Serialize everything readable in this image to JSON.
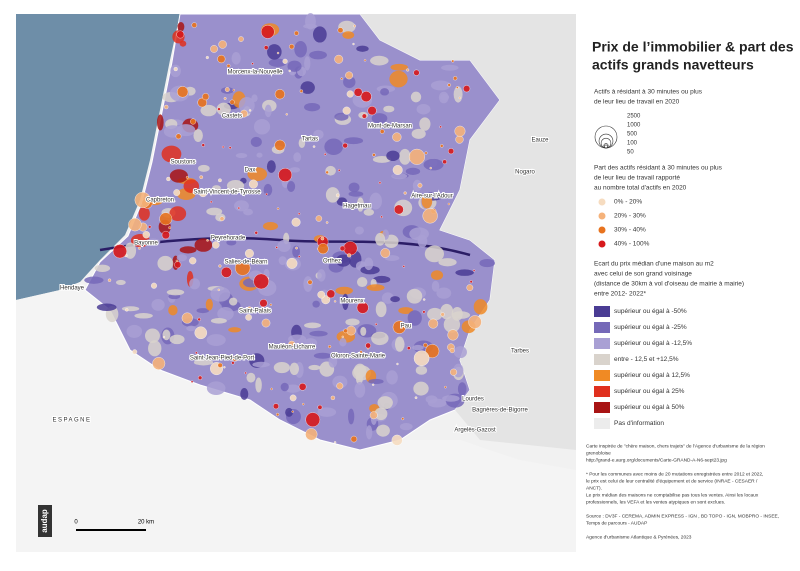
{
  "title": [
    "Prix de l’immobilier & part des",
    "actifs grands navetteurs"
  ],
  "legend_size": {
    "heading": [
      "Actifs à résidant à 30 minutes ou plus",
      "de leur lieu de travail en 2020"
    ],
    "sizes": [
      2500,
      1000,
      500,
      100,
      50
    ]
  },
  "legend_share": {
    "heading": [
      "Part des actifs résidant à 30 minutes ou plus",
      "de leur lieu de travail rapporté",
      "au nombre total d'actifs en 2020"
    ],
    "classes": [
      {
        "label": "0% - 20%",
        "color": "#f6dcc0"
      },
      {
        "label": "20% - 30%",
        "color": "#f5b27a"
      },
      {
        "label": "30% - 40%",
        "color": "#e8731e"
      },
      {
        "label": "40% - 100%",
        "color": "#d7191c"
      }
    ]
  },
  "legend_price": {
    "heading": [
      "Ecart du prix médian d'une maison au m2",
      "avec celui de son grand voisinage",
      "(distance de 30km à vol d'oiseau de mairie à mairie)",
      "entre 2012- 2022*"
    ],
    "classes": [
      {
        "label": "supérieur ou égal à -50%",
        "color": "#4a3c94"
      },
      {
        "label": "supérieur ou égal à -25%",
        "color": "#7569b8"
      },
      {
        "label": "supérieur ou égal à -12,5%",
        "color": "#a9a0d4"
      },
      {
        "label": "entre - 12,5 et +12,5%",
        "color": "#d9d3cc"
      },
      {
        "label": "supérieur ou égal à 12,5%",
        "color": "#f08a24"
      },
      {
        "label": "supérieur ou égal à 25%",
        "color": "#e0301e"
      },
      {
        "label": "supérieur ou égal à 50%",
        "color": "#a81414"
      },
      {
        "label": "Pas d'information",
        "color": "#ececec"
      }
    ]
  },
  "notes": [
    "Carte inspirée de \"chère maison, chers trajets\" de l'Agence d'urbanisme de la région",
    "grenobloise",
    "http://grand-e.aurg.org/documents/Carte-GRAND-A-N6-sept23.jpg",
    "* Pour les communes avec moins de 20 mutations enregistrées entre 2012 et 2022,",
    "le prix est celui de leur centralité d'équipement et de service (INRAE - CESAER /",
    "ANCT).",
    "Le prix médian des maisons ne comptabilise pas tous les ventes. Ainsi les locaux",
    "professionnels, les VEFA et les ventes atypiques en sont exclues.",
    "Source : DV3F - CEREMA, ADMIN EXPRESS - IGN , BD TOPO - IGN, MOBPRO - INSEE,",
    "Temps de parcours - AUDAP",
    "Agence d'urbanisme Atlantique & Pyrénées, 2023"
  ],
  "places": [
    "Morcenx-la-Nouvelle",
    "Castets",
    "Mont-de-Marsan",
    "Tartas",
    "Soustons",
    "Dax",
    "Eauze",
    "Nogaro",
    "Saint-Vincent-de-Tyrosse",
    "Aire-sur-l'Adour",
    "Capbreton",
    "Hagetmau",
    "Bayonne",
    "Peyrehorade",
    "Orthez",
    "Salies-de-Béarn",
    "Hendaye",
    "Mourenx",
    "Saint-Palais",
    "Pau",
    "Tarbes",
    "Mauléon-Licharre",
    "Saint-Jean-Pied-de-Port",
    "Oloron-Sainte-Marie",
    "Lourdes",
    "Bagnères-de-Bigorre",
    "Argelès-Gazost",
    "ESPAGNE"
  ],
  "scale": {
    "start": "0",
    "end": "20 km"
  },
  "logo": "audap"
}
